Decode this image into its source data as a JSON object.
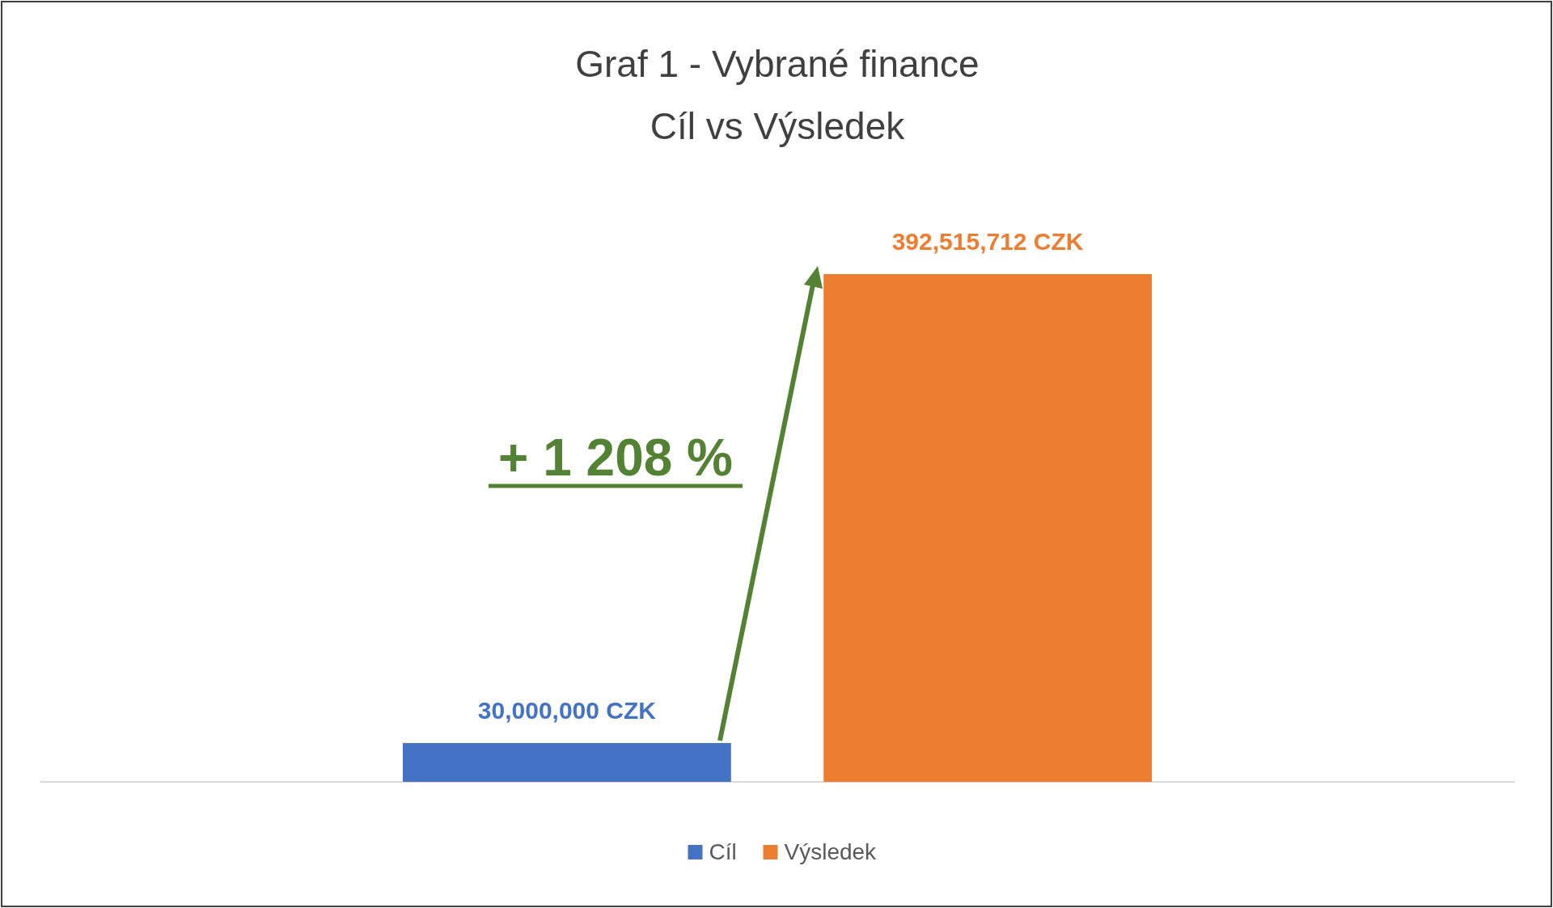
{
  "chart_data": {
    "type": "bar",
    "title": "Graf 1 - Vybrané finance\nCíl vs Výsledek",
    "categories": [
      null
    ],
    "series": [
      {
        "name": "Cíl",
        "color": "#4472c4",
        "values": [
          30000000
        ],
        "value_labels": [
          "30,000,000  CZK"
        ]
      },
      {
        "name": "Výsledek",
        "color": "#ed7d31",
        "values": [
          392515712
        ],
        "value_labels": [
          "392,515,712  CZK"
        ]
      }
    ],
    "annotations": [
      "+ 1 208 %"
    ],
    "legend": "bottom"
  }
}
